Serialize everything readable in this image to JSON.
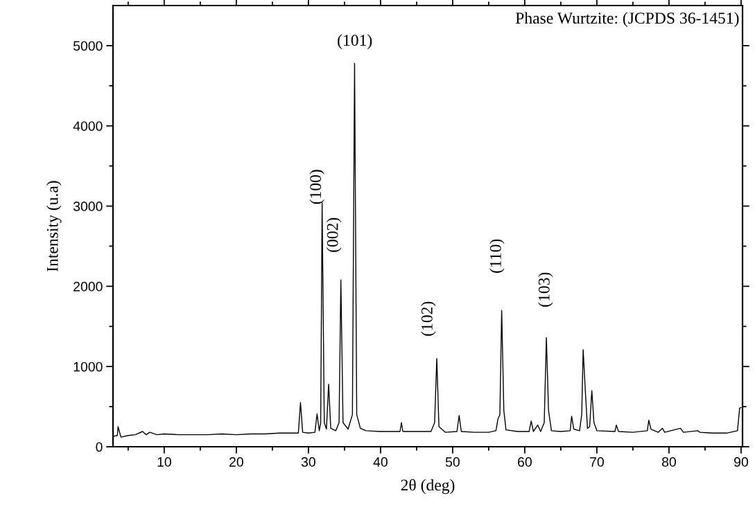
{
  "chart_data": {
    "type": "line",
    "xlabel": "2θ (deg)",
    "ylabel": "Intensity (u.a)",
    "annotations": [
      "Phase Wurtzite: (JCPDS 36-1451)",
      "(100)",
      "(002)",
      "(101)",
      "(102)",
      "(110)",
      "(103)"
    ],
    "x": [
      3.0,
      3.5,
      3.6,
      4.0,
      5.0,
      6.0,
      7.0,
      7.5,
      8.0,
      9.0,
      10,
      12,
      14,
      16,
      18,
      20,
      22,
      24,
      26,
      28,
      28.6,
      28.9,
      29.2,
      30,
      30.9,
      31.2,
      31.5,
      31.7,
      31.9,
      32.2,
      32.5,
      32.8,
      33.1,
      33.8,
      34.25,
      34.5,
      34.8,
      35.5,
      36.1,
      36.4,
      36.7,
      37.2,
      38,
      40,
      42,
      42.7,
      42.9,
      43.1,
      45,
      47,
      47.5,
      47.8,
      48.1,
      49,
      50.6,
      50.9,
      51.2,
      53,
      55,
      56,
      56.3,
      56.55,
      56.8,
      57.1,
      57.4,
      59,
      60.6,
      60.9,
      61.2,
      61.8,
      62.2,
      62.7,
      63.0,
      63.3,
      63.7,
      65,
      66.3,
      66.5,
      66.8,
      67.6,
      67.9,
      68.1,
      68.4,
      68.7,
      69.0,
      69.3,
      69.6,
      70,
      72.5,
      72.7,
      73,
      75,
      77,
      77.2,
      77.5,
      78.5,
      79.1,
      79.4,
      81.6,
      82,
      84,
      84.3,
      86,
      88,
      89.5,
      89.8,
      90.0
    ],
    "series": [
      {
        "color": "#000000",
        "values": [
          130,
          140,
          250,
          120,
          140,
          150,
          190,
          150,
          180,
          150,
          160,
          150,
          150,
          150,
          160,
          150,
          160,
          160,
          170,
          170,
          170,
          550,
          180,
          170,
          180,
          410,
          200,
          300,
          3040,
          300,
          220,
          780,
          230,
          200,
          300,
          2080,
          300,
          220,
          400,
          4780,
          400,
          230,
          200,
          190,
          190,
          190,
          300,
          190,
          190,
          190,
          300,
          1100,
          250,
          180,
          190,
          390,
          190,
          180,
          180,
          200,
          350,
          400,
          1700,
          450,
          210,
          190,
          190,
          320,
          190,
          270,
          190,
          300,
          1360,
          450,
          200,
          190,
          200,
          380,
          220,
          200,
          400,
          1210,
          700,
          230,
          250,
          700,
          300,
          200,
          190,
          270,
          190,
          180,
          200,
          330,
          220,
          180,
          230,
          180,
          230,
          180,
          200,
          180,
          170,
          170,
          200,
          480,
          490
        ]
      }
    ],
    "xlim": [
      2.9,
      90.2
    ],
    "ylim": [
      0,
      5500
    ],
    "xticks": [
      {
        "value": 5,
        "label": null
      },
      10,
      {
        "value": 15,
        "label": null
      },
      20,
      {
        "value": 25,
        "label": null
      },
      30,
      {
        "value": 35,
        "label": null
      },
      40,
      {
        "value": 45,
        "label": null
      },
      50,
      {
        "value": 55,
        "label": null
      },
      60,
      {
        "value": 65,
        "label": null
      },
      70,
      {
        "value": 75,
        "label": null
      },
      80,
      {
        "value": 85,
        "label": null
      },
      90
    ],
    "yticks": [
      0,
      {
        "value": 500,
        "label": null
      },
      1000,
      {
        "value": 1500,
        "label": null
      },
      2000,
      {
        "value": 2500,
        "label": null
      },
      3000,
      {
        "value": 3500,
        "label": null
      },
      4000,
      {
        "value": 4500,
        "label": null
      },
      5000
    ],
    "grid": false,
    "marker": "none",
    "line_style": "solid"
  }
}
